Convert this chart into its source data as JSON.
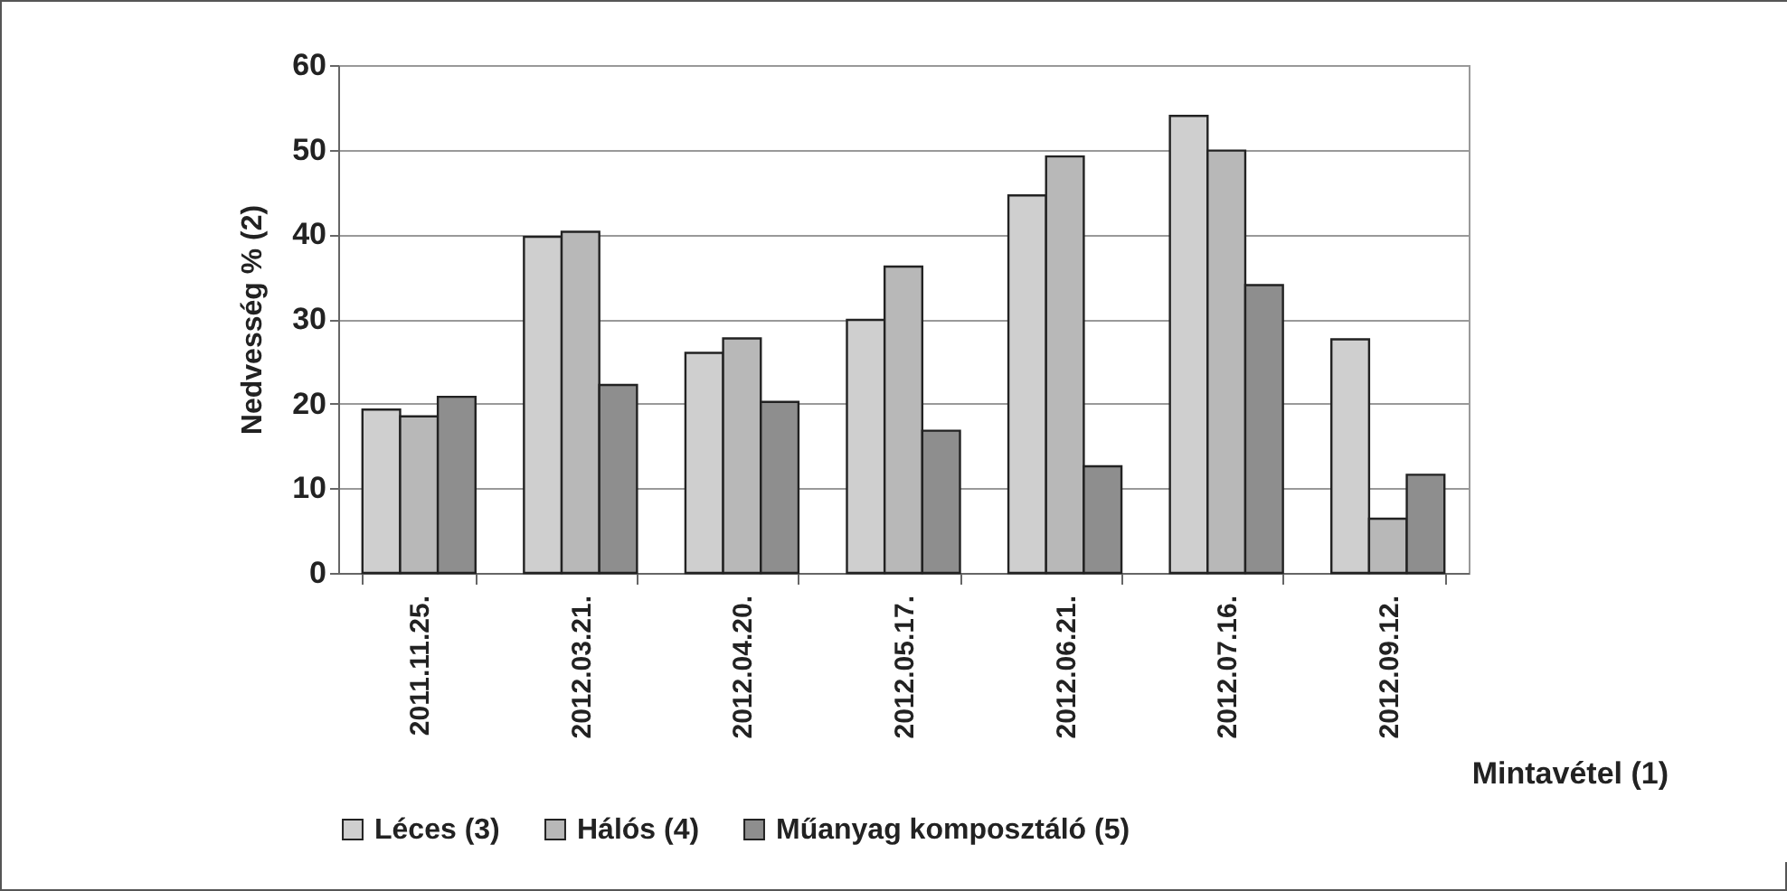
{
  "chart_data": {
    "type": "bar",
    "ylabel": "Nedvesség % (2)",
    "xlabel": "Mintavétel (1)",
    "categories": [
      "2011.11.25.",
      "2012.03.21.",
      "2012.04.20.",
      "2012.05.17.",
      "2012.06.21.",
      "2012.07.16.",
      "2012.09.12."
    ],
    "series": [
      {
        "name": "Léces (3)",
        "color": "#cfcfcf",
        "values": [
          19.3,
          39.7,
          26.0,
          29.9,
          44.6,
          54.0,
          27.6
        ]
      },
      {
        "name": "Hálós (4)",
        "color": "#b8b8b8",
        "values": [
          18.5,
          40.3,
          27.7,
          36.2,
          49.2,
          49.9,
          6.4
        ]
      },
      {
        "name": "Műanyag komposztáló (5)",
        "color": "#8e8e8e",
        "values": [
          20.8,
          22.2,
          20.2,
          16.8,
          12.6,
          34.0,
          11.6
        ]
      }
    ],
    "ylim": [
      0,
      60
    ],
    "yticks": [
      0,
      10,
      20,
      30,
      40,
      50,
      60
    ],
    "grid": "y",
    "legend": "bottom left"
  }
}
